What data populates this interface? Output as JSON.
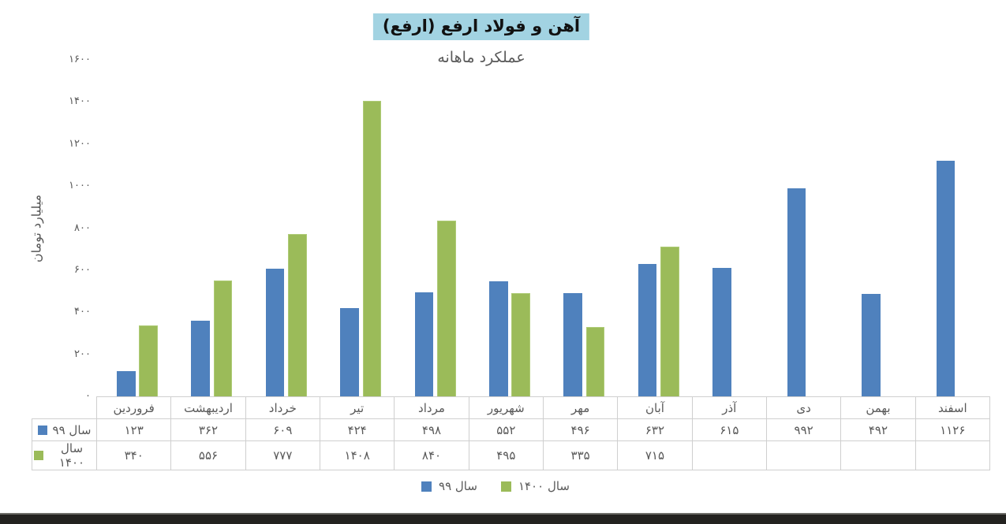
{
  "title": "آهن و فولاد ارفع (ارفع)",
  "subtitle": "عملکرد ماهانه",
  "colors": {
    "series_99": "#4f81bd",
    "series_1400": "#9bbb59",
    "series_1400_border": "#aecb76",
    "title_highlight": "#a2d3e2",
    "text_gray": "#595959",
    "table_border": "#cfcfcf",
    "bottom_bar": "#232220"
  },
  "y_axis": {
    "label": "میلیارد تومان",
    "ticks": [
      "۰",
      "۲۰۰",
      "۴۰۰",
      "۶۰۰",
      "۸۰۰",
      "۱۰۰۰",
      "۱۲۰۰",
      "۱۴۰۰",
      "۱۶۰۰"
    ]
  },
  "months": [
    "فروردین",
    "اردیبهشت",
    "خرداد",
    "تیر",
    "مرداد",
    "شهریور",
    "مهر",
    "آبان",
    "آذر",
    "دی",
    "بهمن",
    "اسفند"
  ],
  "table": {
    "row_labels": [
      "سال ۹۹",
      "سال ۱۴۰۰"
    ],
    "values_99_fa": [
      "۱۲۳",
      "۳۶۲",
      "۶۰۹",
      "۴۲۴",
      "۴۹۸",
      "۵۵۲",
      "۴۹۶",
      "۶۳۲",
      "۶۱۵",
      "۹۹۲",
      "۴۹۲",
      "۱۱۲۶"
    ],
    "values_1400_fa": [
      "۳۴۰",
      "۵۵۶",
      "۷۷۷",
      "۱۴۰۸",
      "۸۴۰",
      "۴۹۵",
      "۳۳۵",
      "۷۱۵",
      "",
      "",
      "",
      ""
    ]
  },
  "legend": [
    {
      "label": "سال ۹۹",
      "color": "#4f81bd"
    },
    {
      "label": "سال ۱۴۰۰",
      "color": "#9bbb59"
    }
  ],
  "chart_data": {
    "type": "bar",
    "title": "آهن و فولاد ارفع (ارفع)",
    "subtitle": "عملکرد ماهانه",
    "ylabel": "میلیارد تومان",
    "xlabel": "",
    "ylim": [
      0,
      1600
    ],
    "ytick_step": 200,
    "grid": false,
    "legend_position": "bottom",
    "categories": [
      "فروردین",
      "اردیبهشت",
      "خرداد",
      "تیر",
      "مرداد",
      "شهریور",
      "مهر",
      "آبان",
      "آذر",
      "دی",
      "بهمن",
      "اسفند"
    ],
    "series": [
      {
        "name": "سال ۹۹",
        "color": "#4f81bd",
        "values": [
          123,
          362,
          609,
          424,
          498,
          552,
          496,
          632,
          615,
          992,
          492,
          1126
        ]
      },
      {
        "name": "سال ۱۴۰۰",
        "color": "#9bbb59",
        "values": [
          340,
          556,
          777,
          1408,
          840,
          495,
          335,
          715,
          null,
          null,
          null,
          null
        ]
      }
    ]
  }
}
